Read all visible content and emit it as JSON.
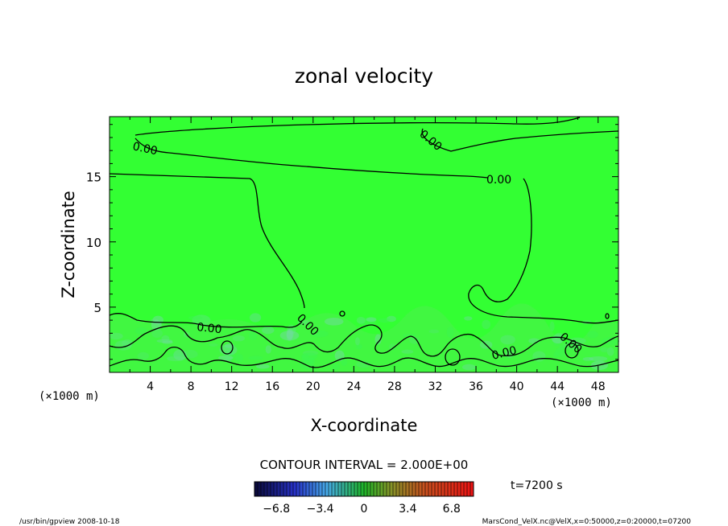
{
  "chart_data": {
    "type": "contour",
    "title": "zonal velocity",
    "xlabel": "X-coordinate",
    "ylabel": "Z-coordinate",
    "x_units_left": "(×1000 m)",
    "x_units_right": "(×1000 m)",
    "x_ticks": [
      "4",
      "8",
      "12",
      "16",
      "20",
      "24",
      "28",
      "32",
      "36",
      "40",
      "44",
      "48"
    ],
    "y_ticks": [
      "5",
      "10",
      "15"
    ],
    "xlim": [
      0,
      50
    ],
    "ylim": [
      0,
      19.6
    ],
    "contour_interval_text": "CONTOUR INTERVAL = 2.000E+00",
    "contour_labels": [
      "0.00",
      "0.00",
      "0.00",
      "0.00",
      "0.00",
      "0.00",
      "0.00",
      "0.00"
    ],
    "colorbar": {
      "ticks": [
        "−6.8",
        "−3.4",
        "0",
        "3.4",
        "6.8"
      ],
      "range": [
        -8.5,
        8.5
      ]
    },
    "time_label": "t=7200 s",
    "field_color": "#33ff33"
  },
  "footer": {
    "left": "/usr/bin/gpview  2008-10-18",
    "right": "MarsCond_VelX.nc@VelX,x=0:50000,z=0:20000,t=07200"
  }
}
